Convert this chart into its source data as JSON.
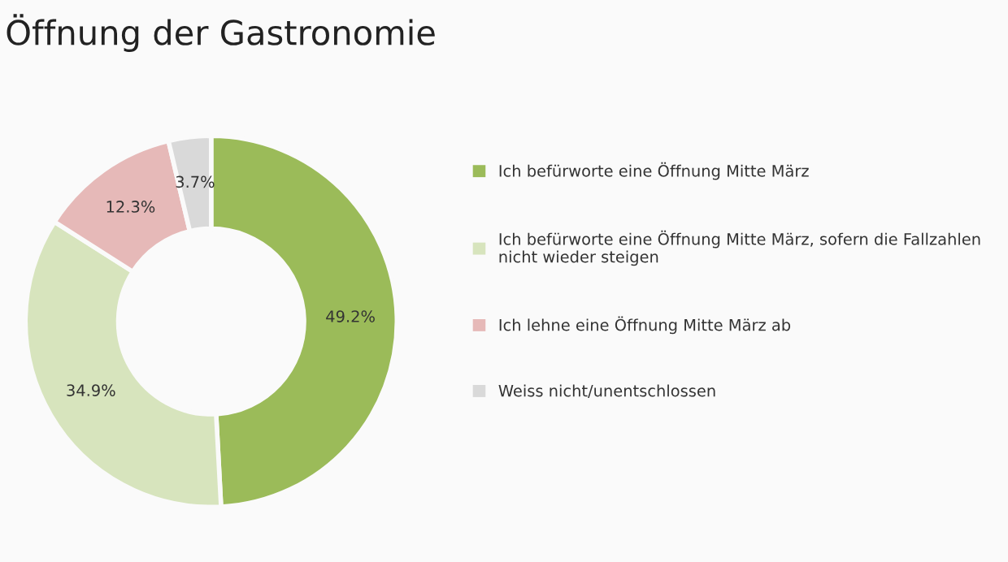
{
  "chart_data": {
    "type": "donut",
    "title": "Öffnung der Gastronomie",
    "categories": [
      "Ich befürworte eine Öffnung Mitte März",
      "Ich befürworte eine Öffnung Mitte März, sofern die Fallzahlen nicht wieder steigen",
      "Ich lehne eine Öffnung Mitte März ab",
      "Weiss nicht/unentschlossen"
    ],
    "values": [
      49.2,
      34.9,
      12.3,
      3.7
    ],
    "value_labels": [
      "49.2%",
      "34.9%",
      "12.3%",
      "3.7%"
    ],
    "colors": [
      "#9bbb59",
      "#d7e4bd",
      "#e6b9b8",
      "#d9d9d9"
    ],
    "legend": "right"
  }
}
